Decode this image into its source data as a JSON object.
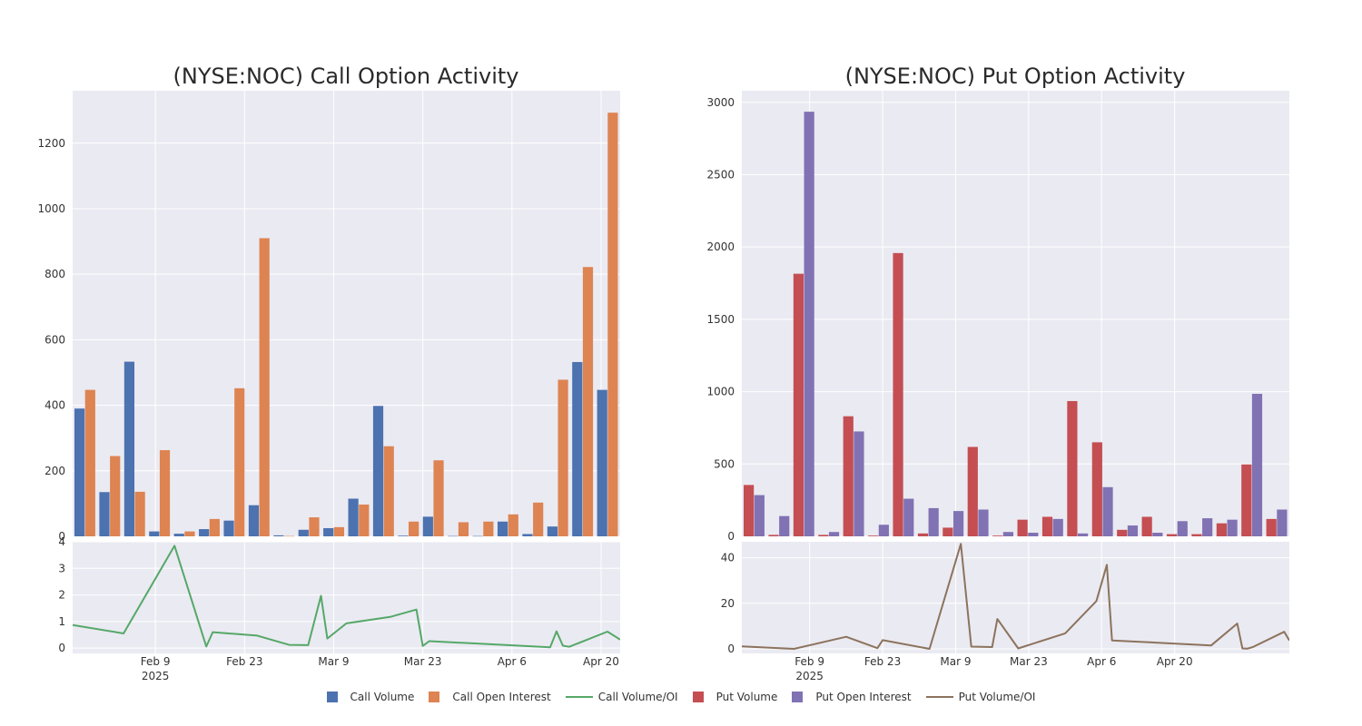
{
  "charts": {
    "call": {
      "title": "(NYSE:NOC) Call Option Activity",
      "bar_colors": [
        "#4c72b0",
        "#dd8452"
      ],
      "line_color": "#55a868"
    },
    "put": {
      "title": "(NYSE:NOC) Put Option Activity",
      "bar_colors": [
        "#c44e52",
        "#8172b3"
      ],
      "line_color": "#8c735d"
    }
  },
  "x_ticks": [
    {
      "label": "Feb 9",
      "sub": "2025",
      "date": "2025-02-09"
    },
    {
      "label": "Feb 23",
      "sub": "",
      "date": "2025-02-23"
    },
    {
      "label": "Mar 9",
      "sub": "",
      "date": "2025-03-09"
    },
    {
      "label": "Mar 23",
      "sub": "",
      "date": "2025-03-23"
    },
    {
      "label": "Apr 6",
      "sub": "",
      "date": "2025-04-06"
    },
    {
      "label": "Apr 20",
      "sub": "",
      "date": "2025-04-20"
    }
  ],
  "legend": [
    {
      "label": "Call Volume",
      "kind": "box",
      "color": "#4c72b0"
    },
    {
      "label": "Call Open Interest",
      "kind": "box",
      "color": "#dd8452"
    },
    {
      "label": "Call Volume/OI",
      "kind": "line",
      "color": "#55a868"
    },
    {
      "label": "Put Volume",
      "kind": "box",
      "color": "#c44e52"
    },
    {
      "label": "Put Open Interest",
      "kind": "box",
      "color": "#8172b3"
    },
    {
      "label": "Put Volume/OI",
      "kind": "line",
      "color": "#8c735d"
    }
  ],
  "chart_data": [
    {
      "type": "bar",
      "title": "(NYSE:NOC) Call Option Activity",
      "ylim": [
        0,
        1360
      ],
      "yticks": [
        0,
        200,
        400,
        600,
        800,
        1000,
        1200
      ],
      "series": [
        {
          "name": "Call Volume",
          "values": [
            390,
            135,
            533,
            15,
            8,
            22,
            48,
            95,
            3,
            20,
            25,
            115,
            398,
            2,
            60,
            1,
            1,
            45,
            7,
            30,
            532,
            447
          ]
        },
        {
          "name": "Call Open Interest",
          "values": [
            447,
            245,
            136,
            263,
            15,
            53,
            452,
            910,
            1,
            58,
            28,
            97,
            275,
            45,
            232,
            43,
            45,
            67,
            103,
            478,
            822,
            1293
          ]
        }
      ]
    },
    {
      "type": "line",
      "title": "",
      "ylim": [
        -0.2,
        4
      ],
      "yticks": [
        0,
        1,
        2,
        3,
        4
      ],
      "series": [
        {
          "name": "Call Volume/OI",
          "points": [
            [
              "2025-01-27",
              0.87
            ],
            [
              "2025-02-04",
              0.55
            ],
            [
              "2025-02-12",
              3.85
            ],
            [
              "2025-02-17",
              0.06
            ],
            [
              "2025-02-18",
              0.6
            ],
            [
              "2025-02-25",
              0.47
            ],
            [
              "2025-03-02",
              0.12
            ],
            [
              "2025-03-05",
              0.11
            ],
            [
              "2025-03-07",
              1.97
            ],
            [
              "2025-03-08",
              0.36
            ],
            [
              "2025-03-11",
              0.93
            ],
            [
              "2025-03-18",
              1.18
            ],
            [
              "2025-03-22",
              1.45
            ],
            [
              "2025-03-23",
              0.08
            ],
            [
              "2025-03-24",
              0.26
            ],
            [
              "2025-04-12",
              0.03
            ],
            [
              "2025-04-13",
              0.63
            ],
            [
              "2025-04-14",
              0.09
            ],
            [
              "2025-04-15",
              0.05
            ],
            [
              "2025-04-21",
              0.62
            ],
            [
              "2025-04-23",
              0.32
            ]
          ]
        }
      ]
    },
    {
      "type": "bar",
      "title": "(NYSE:NOC) Put Option Activity",
      "ylim": [
        0,
        3080
      ],
      "yticks": [
        0,
        500,
        1000,
        1500,
        2000,
        2500,
        3000
      ],
      "series": [
        {
          "name": "Put Volume",
          "values": [
            355,
            10,
            1815,
            10,
            830,
            5,
            1958,
            20,
            60,
            618,
            5,
            115,
            135,
            935,
            650,
            45,
            135,
            15,
            15,
            90,
            497,
            120
          ]
        },
        {
          "name": "Put Open Interest",
          "values": [
            285,
            140,
            2935,
            30,
            725,
            80,
            260,
            195,
            175,
            185,
            30,
            25,
            120,
            20,
            340,
            75,
            25,
            105,
            125,
            115,
            985,
            185
          ]
        }
      ]
    },
    {
      "type": "line",
      "title": "",
      "ylim": [
        -2,
        47
      ],
      "yticks": [
        0,
        20,
        40
      ],
      "series": [
        {
          "name": "Put Volume/OI",
          "points": [
            [
              "2025-01-27",
              1.1
            ],
            [
              "2025-02-06",
              0.0
            ],
            [
              "2025-02-16",
              5.3
            ],
            [
              "2025-02-22",
              0.3
            ],
            [
              "2025-02-23",
              3.8
            ],
            [
              "2025-03-04",
              0.0
            ],
            [
              "2025-03-10",
              46.1
            ],
            [
              "2025-03-12",
              1.0
            ],
            [
              "2025-03-16",
              0.8
            ],
            [
              "2025-03-17",
              13.1
            ],
            [
              "2025-03-21",
              0.2
            ],
            [
              "2025-03-30",
              6.8
            ],
            [
              "2025-04-05",
              21.0
            ],
            [
              "2025-04-07",
              36.9
            ],
            [
              "2025-04-08",
              3.7
            ],
            [
              "2025-04-27",
              1.5
            ],
            [
              "2025-05-02",
              11.1
            ],
            [
              "2025-05-03",
              0.2
            ],
            [
              "2025-05-04",
              0.1
            ],
            [
              "2025-05-05",
              0.8
            ],
            [
              "2025-05-11",
              7.5
            ],
            [
              "2025-05-12",
              3.7
            ]
          ]
        }
      ]
    }
  ]
}
